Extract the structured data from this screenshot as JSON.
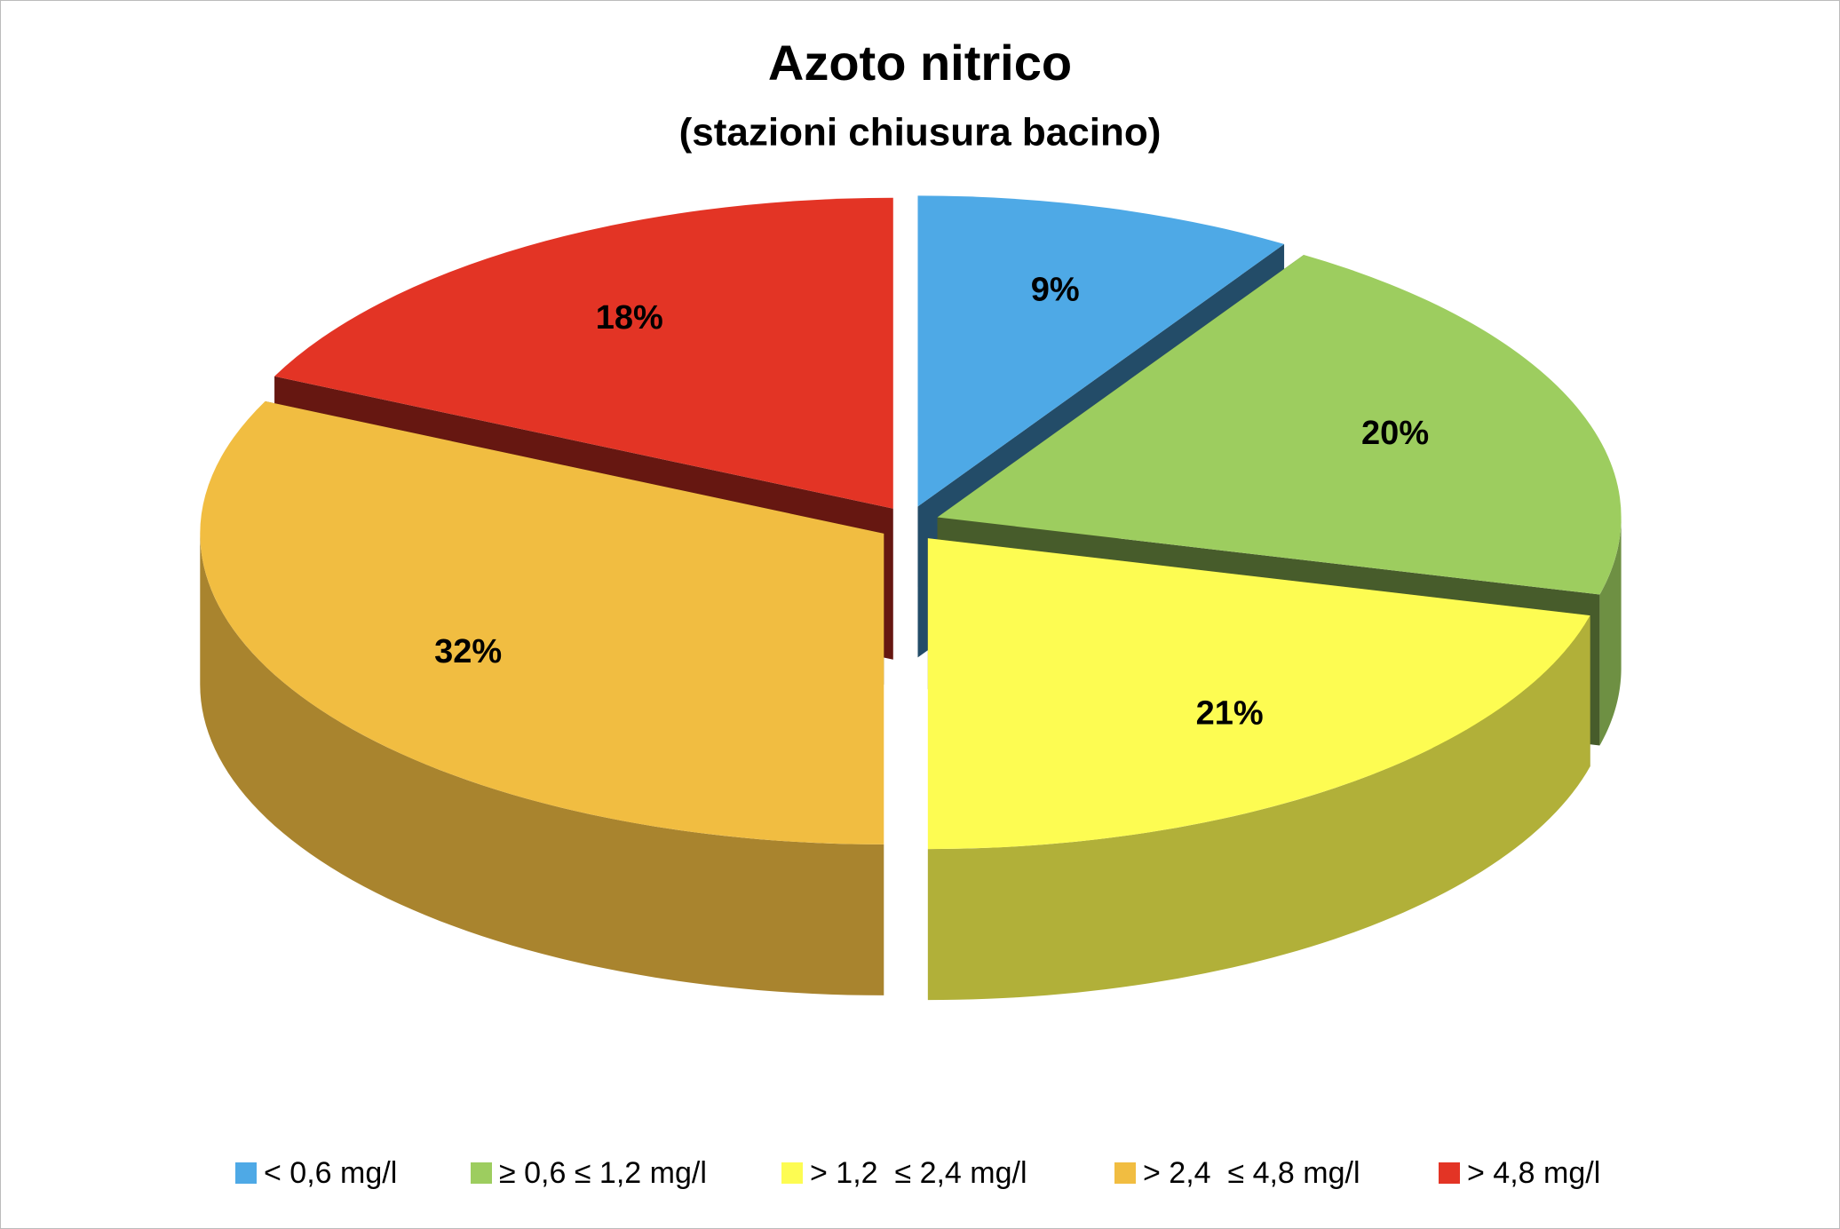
{
  "chart_data": {
    "type": "pie3d",
    "title": "Azoto nitrico",
    "subtitle": "(stazioni chiusura bacino)",
    "categories": [
      "< 0,6 mg/l",
      "≥ 0,6 ≤ 1,2 mg/l",
      "> 1,2  ≤ 2,4 mg/l",
      "> 2,4  ≤ 4,8 mg/l",
      "> 4,8 mg/l"
    ],
    "values": [
      9,
      20,
      21,
      32,
      18
    ],
    "value_labels": [
      "9%",
      "20%",
      "21%",
      "32%",
      "18%"
    ],
    "colors": [
      "#4ea9e6",
      "#9dcd5f",
      "#fdfc52",
      "#f1bd41",
      "#e33425"
    ],
    "legend": "bottom"
  }
}
